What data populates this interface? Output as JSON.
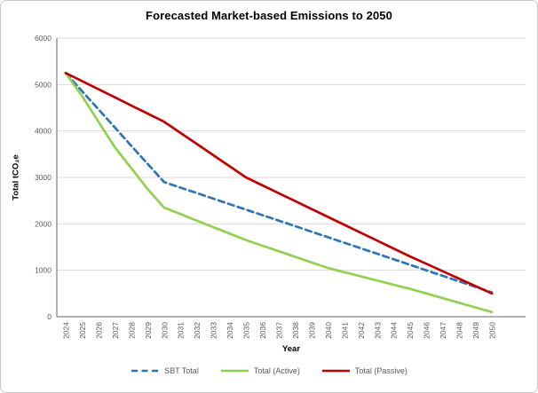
{
  "colors": {
    "grid": "#d9d9d9",
    "axis": "#808080",
    "tick_text": "#595959",
    "legend_text": "#595959",
    "title_text": "#000000",
    "background": "#ffffff",
    "border": "#c9c9c9"
  },
  "chart_data": {
    "type": "line",
    "title": "Forecasted Market-based Emissions to 2050",
    "xlabel": "Year",
    "ylabel": "Total tCO₂e",
    "ylim": [
      0,
      6000
    ],
    "ytick_step": 1000,
    "grid": true,
    "legend_position": "bottom",
    "x": [
      2024,
      2025,
      2026,
      2027,
      2028,
      2029,
      2030,
      2031,
      2032,
      2033,
      2034,
      2035,
      2036,
      2037,
      2038,
      2039,
      2040,
      2041,
      2042,
      2043,
      2044,
      2045,
      2046,
      2047,
      2048,
      2049,
      2050
    ],
    "ytick_labels": [
      "0",
      "1000",
      "2000",
      "3000",
      "4000",
      "5000",
      "6000"
    ],
    "series": [
      {
        "name": "SBT Total",
        "color": "#2e75b6",
        "style": "dashed",
        "values": [
          5250,
          4858,
          4467,
          4075,
          3683,
          3292,
          2900,
          2781,
          2663,
          2544,
          2425,
          2306,
          2188,
          2069,
          1950,
          1831,
          1713,
          1594,
          1475,
          1356,
          1238,
          1119,
          1000,
          881,
          763,
          644,
          525
        ]
      },
      {
        "name": "Total (Active)",
        "color": "#92d050",
        "style": "solid",
        "values": [
          5250,
          4750,
          4200,
          3650,
          3200,
          2750,
          2350,
          2210,
          2070,
          1930,
          1790,
          1650,
          1530,
          1410,
          1290,
          1170,
          1050,
          960,
          870,
          780,
          690,
          600,
          500,
          400,
          300,
          200,
          100
        ]
      },
      {
        "name": "Total (Passive)",
        "color": "#c00000",
        "style": "solid",
        "values": [
          5250,
          5075,
          4900,
          4725,
          4550,
          4375,
          4200,
          3960,
          3720,
          3480,
          3240,
          3000,
          2830,
          2660,
          2490,
          2320,
          2150,
          1980,
          1810,
          1640,
          1470,
          1300,
          1140,
          980,
          820,
          660,
          500
        ]
      }
    ]
  }
}
